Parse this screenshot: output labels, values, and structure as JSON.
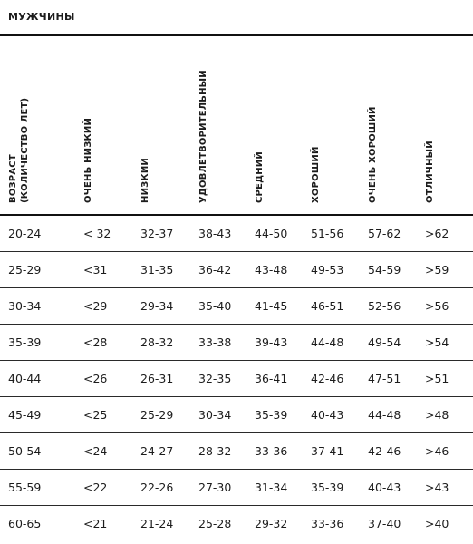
{
  "title": "МУЖЧИНЫ",
  "headers": [
    "ВОЗРАСТ\n(КОЛИЧЕСТВО ЛЕТ)",
    "ОЧЕНЬ НИЗКИЙ",
    "НИЗКИЙ",
    "УДОВЛЕТВОРИТЕЛЬНЫЙ",
    "СРЕДНИЙ",
    "ХОРОШИЙ",
    "ОЧЕНЬ ХОРОШИЙ",
    "ОТЛИЧНЫЙ"
  ],
  "rows": [
    [
      "20-24",
      "< 32",
      "32-37",
      "38-43",
      "44-50",
      "51-56",
      "57-62",
      ">62"
    ],
    [
      "25-29",
      "<31",
      "31-35",
      "36-42",
      "43-48",
      "49-53",
      "54-59",
      ">59"
    ],
    [
      "30-34",
      "<29",
      "29-34",
      "35-40",
      "41-45",
      "46-51",
      "52-56",
      ">56"
    ],
    [
      "35-39",
      "<28",
      "28-32",
      "33-38",
      "39-43",
      "44-48",
      "49-54",
      ">54"
    ],
    [
      "40-44",
      "<26",
      "26-31",
      "32-35",
      "36-41",
      "42-46",
      "47-51",
      ">51"
    ],
    [
      "45-49",
      "<25",
      "25-29",
      "30-34",
      "35-39",
      "40-43",
      "44-48",
      ">48"
    ],
    [
      "50-54",
      "<24",
      "24-27",
      "28-32",
      "33-36",
      "37-41",
      "42-46",
      ">46"
    ],
    [
      "55-59",
      "<22",
      "22-26",
      "27-30",
      "31-34",
      "35-39",
      "40-43",
      ">43"
    ],
    [
      "60-65",
      "<21",
      "21-24",
      "25-28",
      "29-32",
      "33-36",
      "37-40",
      ">40"
    ]
  ]
}
